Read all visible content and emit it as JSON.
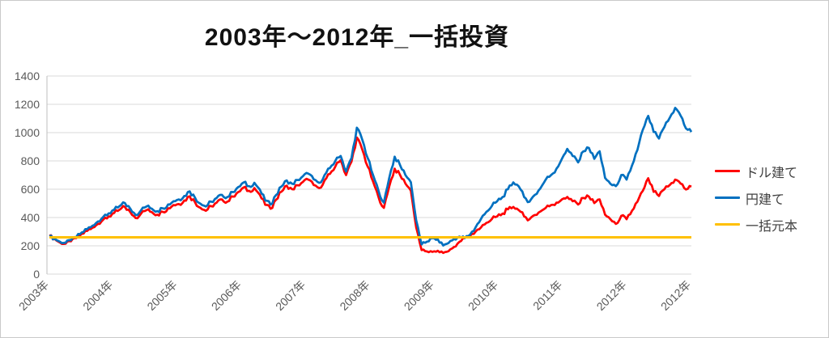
{
  "chart_data": {
    "type": "line",
    "title": "2003年～2012年_一括投資",
    "xlabel": "",
    "ylabel": "",
    "ylim": [
      0,
      1400
    ],
    "y_ticks": [
      0,
      200,
      400,
      600,
      800,
      1000,
      1200,
      1400
    ],
    "x_tick_labels": [
      "2003年",
      "2004年",
      "2005年",
      "2006年",
      "2007年",
      "2008年",
      "2009年",
      "2010年",
      "2011年",
      "2012年",
      "2012年"
    ],
    "grid": true,
    "legend_position": "right",
    "sampling": "monthly points Jan 2003 - Dec 2012, values read from chart",
    "series": [
      {
        "name": "ドル建て",
        "color": "#FF0000",
        "values": [
          272,
          248,
          222,
          215,
          232,
          255,
          285,
          305,
          328,
          355,
          385,
          408,
          432,
          455,
          475,
          438,
          396,
          428,
          452,
          438,
          420,
          440,
          465,
          488,
          495,
          520,
          550,
          508,
          468,
          448,
          480,
          505,
          528,
          512,
          548,
          580,
          612,
          588,
          608,
          562,
          490,
          462,
          525,
          582,
          625,
          600,
          628,
          652,
          668,
          630,
          608,
          662,
          708,
          760,
          805,
          700,
          795,
          965,
          880,
          760,
          655,
          545,
          468,
          620,
          745,
          700,
          640,
          590,
          330,
          170,
          160,
          157,
          165,
          150,
          162,
          192,
          228,
          255,
          272,
          300,
          330,
          362,
          388,
          408,
          428,
          458,
          475,
          452,
          408,
          388,
          418,
          442,
          468,
          488,
          505,
          528,
          545,
          515,
          492,
          538,
          548,
          502,
          528,
          420,
          388,
          355,
          412,
          388,
          448,
          512,
          588,
          678,
          582,
          552,
          600,
          630,
          668,
          640,
          598,
          618
        ]
      },
      {
        "name": "円建て",
        "color": "#0070C0",
        "values": [
          268,
          250,
          228,
          222,
          240,
          262,
          295,
          318,
          342,
          372,
          405,
          430,
          455,
          480,
          502,
          462,
          418,
          452,
          478,
          462,
          445,
          465,
          492,
          515,
          528,
          552,
          585,
          540,
          498,
          478,
          512,
          538,
          560,
          545,
          580,
          615,
          648,
          622,
          645,
          598,
          520,
          492,
          558,
          618,
          662,
          638,
          665,
          692,
          710,
          670,
          645,
          700,
          750,
          800,
          835,
          725,
          820,
          1035,
          950,
          820,
          700,
          590,
          505,
          680,
          830,
          770,
          700,
          650,
          380,
          210,
          230,
          255,
          245,
          202,
          220,
          248,
          265,
          255,
          280,
          330,
          390,
          440,
          480,
          515,
          545,
          600,
          648,
          620,
          545,
          512,
          560,
          605,
          668,
          700,
          745,
          815,
          885,
          835,
          790,
          868,
          892,
          815,
          868,
          680,
          638,
          622,
          700,
          668,
          768,
          878,
          1020,
          1118,
          1005,
          958,
          1040,
          1105,
          1175,
          1120,
          1030,
          1005
        ]
      },
      {
        "name": "一括元本",
        "color": "#FFC000",
        "constant_value": 260
      }
    ]
  },
  "colors": {
    "gridline": "#D9D9D9",
    "axis_line": "#BFBFBF",
    "tick_label": "#595959",
    "title": "#111111",
    "legend_text": "#404040"
  }
}
